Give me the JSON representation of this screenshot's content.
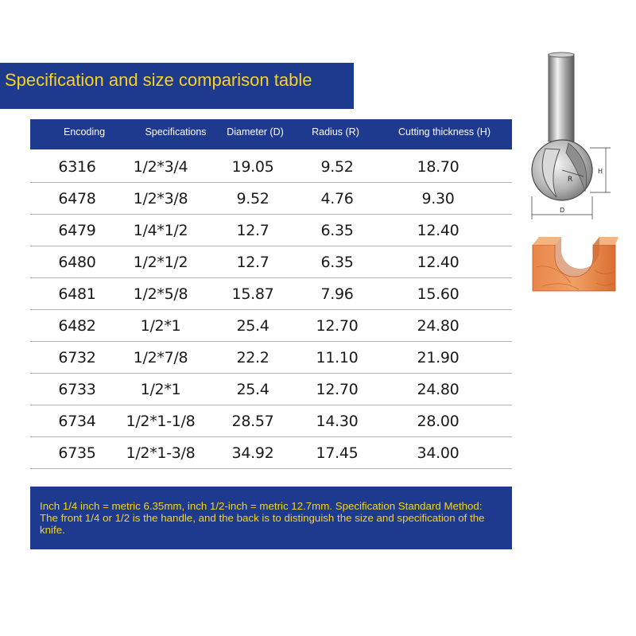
{
  "title": "Specification and size comparison table",
  "columns": [
    "Encoding",
    "Specifications",
    "Diameter (D)",
    "Radius (R)",
    "Cutting thickness (H)"
  ],
  "rows": [
    [
      "6316",
      "1/2*3/4",
      "19.05",
      "9.52",
      "18.70"
    ],
    [
      "6478",
      "1/2*3/8",
      "9.52",
      "4.76",
      "9.30"
    ],
    [
      "6479",
      "1/4*1/2",
      "12.7",
      "6.35",
      "12.40"
    ],
    [
      "6480",
      "1/2*1/2",
      "12.7",
      "6.35",
      "12.40"
    ],
    [
      "6481",
      "1/2*5/8",
      "15.87",
      "7.96",
      "15.60"
    ],
    [
      "6482",
      "1/2*1",
      "25.4",
      "12.70",
      "24.80"
    ],
    [
      "6732",
      "1/2*7/8",
      "22.2",
      "11.10",
      "21.90"
    ],
    [
      "6733",
      "1/2*1",
      "25.4",
      "12.70",
      "24.80"
    ],
    [
      "6734",
      "1/2*1-1/8",
      "28.57",
      "14.30",
      "28.00"
    ],
    [
      "6735",
      "1/2*1-3/8",
      "34.92",
      "17.45",
      "34.00"
    ]
  ],
  "note": "Inch 1/4 inch = metric 6.35mm, inch 1/2-inch = metric 12.7mm. Specification Standard Method: The front 1/4 or 1/2 is the handle, and the back is to distinguish the size and specification of the knife.",
  "diagram_labels": {
    "radius": "R",
    "height": "H",
    "diameter": "D"
  },
  "colors": {
    "banner": "#1e3a8f",
    "title_text": "#f6d321",
    "header_text": "#ffffff",
    "wood": "#e07a3a"
  }
}
